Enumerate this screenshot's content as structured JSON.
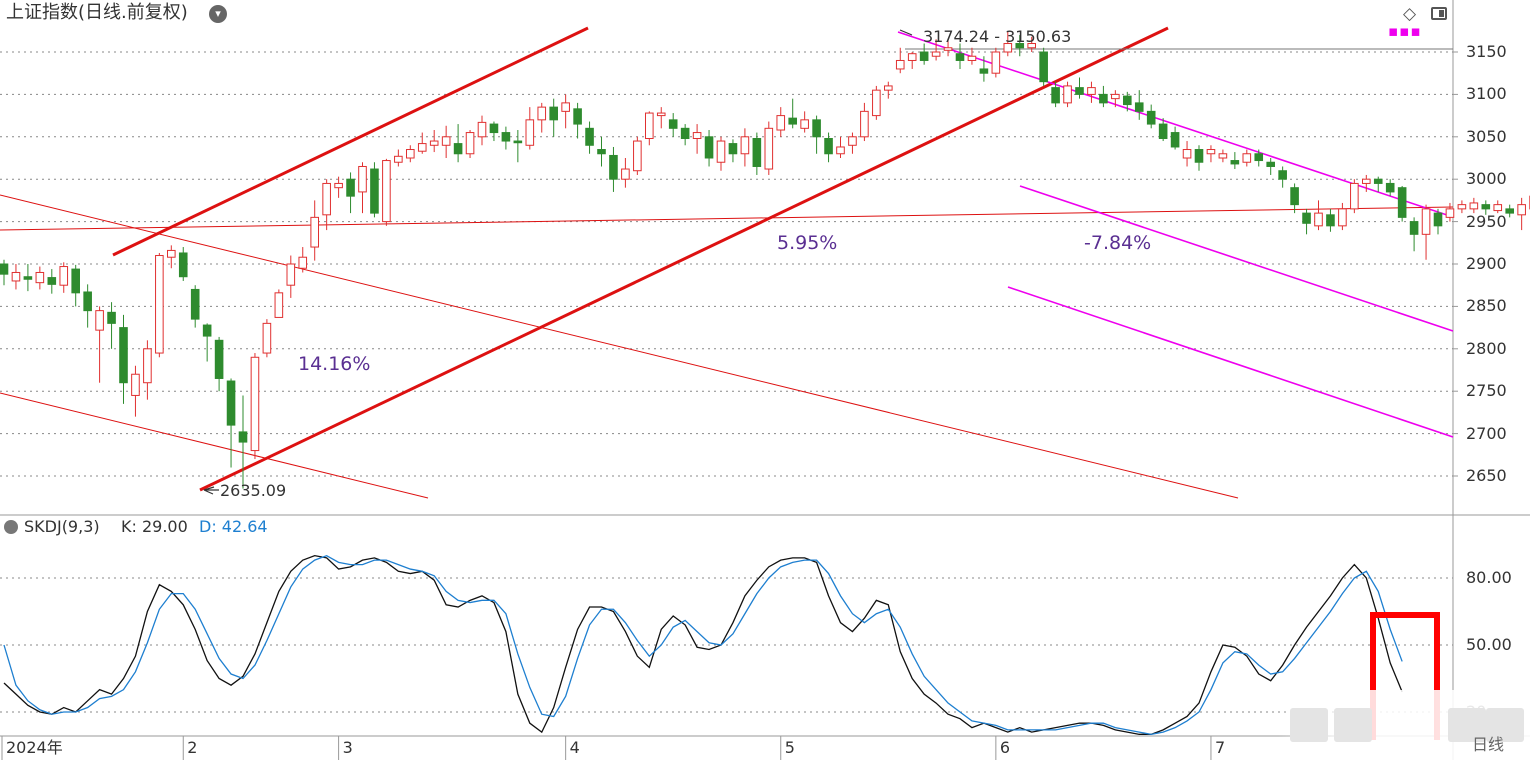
{
  "header": {
    "title": "上证指数(日线.前复权)",
    "icon": "chevron-down-icon"
  },
  "toolbar": {
    "icons": [
      "diamond-icon",
      "panel-toggle-icon",
      "more-dots-icon"
    ],
    "accent_color": "#ee00ee"
  },
  "indicator": {
    "name": "SKDJ(9,3)",
    "k_text": "K: 29.00",
    "d_text": "D: 42.64",
    "k_color": "#111111",
    "d_color": "#1e7fd0"
  },
  "annotations": {
    "pct1": "14.16%",
    "pct2": "5.95%",
    "pct3": "-7.84%",
    "low_label": "2635.09",
    "high_label": "3174.24 - 3150.63",
    "corner_label": "日线"
  },
  "colors": {
    "up": "#e03030",
    "down": "#2e8b2e",
    "trend": "#dd1111",
    "channel": "#ee00ee",
    "highlight_box": "#ff0000"
  },
  "chart_data": [
    {
      "type": "candlestick",
      "title": "上证指数(日线.前复权)",
      "ylim": [
        2620,
        3180
      ],
      "y_ticks": [
        2650,
        2700,
        2750,
        2800,
        2850,
        2900,
        2950,
        3000,
        3050,
        3100,
        3150
      ],
      "x_tick_labels": [
        "2024年",
        "2",
        "3",
        "4",
        "5",
        "6",
        "7"
      ],
      "grid": true,
      "low": 2635.09,
      "high": 3174.24,
      "candles": [
        [
          2900,
          2888,
          2905,
          2875
        ],
        [
          2880,
          2890,
          2900,
          2870
        ],
        [
          2885,
          2882,
          2900,
          2868
        ],
        [
          2878,
          2890,
          2897,
          2870
        ],
        [
          2884,
          2876,
          2894,
          2865
        ],
        [
          2875,
          2897,
          2902,
          2866
        ],
        [
          2894,
          2866,
          2899,
          2850
        ],
        [
          2867,
          2845,
          2876,
          2825
        ],
        [
          2822,
          2845,
          2850,
          2760
        ],
        [
          2843,
          2830,
          2855,
          2800
        ],
        [
          2825,
          2760,
          2840,
          2735
        ],
        [
          2745,
          2770,
          2780,
          2720
        ],
        [
          2760,
          2800,
          2810,
          2740
        ],
        [
          2795,
          2910,
          2913,
          2790
        ],
        [
          2908,
          2916,
          2922,
          2895
        ],
        [
          2913,
          2885,
          2920,
          2880
        ],
        [
          2870,
          2835,
          2875,
          2825
        ],
        [
          2828,
          2815,
          2830,
          2785
        ],
        [
          2810,
          2765,
          2814,
          2750
        ],
        [
          2762,
          2710,
          2765,
          2660
        ],
        [
          2702,
          2690,
          2745,
          2635.09
        ],
        [
          2680,
          2790,
          2795,
          2670
        ],
        [
          2795,
          2830,
          2835,
          2790
        ],
        [
          2837,
          2866,
          2870,
          2837
        ],
        [
          2875,
          2900,
          2910,
          2860
        ],
        [
          2895,
          2908,
          2920,
          2890
        ],
        [
          2920,
          2955,
          2975,
          2904
        ],
        [
          2958,
          2995,
          3000,
          2940
        ],
        [
          2990,
          2995,
          3003,
          2978
        ],
        [
          3000,
          2980,
          3008,
          2960
        ],
        [
          2985,
          3015,
          3020,
          2960
        ],
        [
          3012,
          2960,
          3020,
          2955
        ],
        [
          2950,
          3022,
          3024,
          2945
        ],
        [
          3020,
          3027,
          3035,
          3015
        ],
        [
          3025,
          3035,
          3040,
          3020
        ],
        [
          3033,
          3042,
          3055,
          3030
        ],
        [
          3040,
          3045,
          3058,
          3032
        ],
        [
          3040,
          3050,
          3063,
          3025
        ],
        [
          3042,
          3030,
          3065,
          3020
        ],
        [
          3030,
          3055,
          3058,
          3025
        ],
        [
          3050,
          3067,
          3075,
          3040
        ],
        [
          3065,
          3055,
          3068,
          3045
        ],
        [
          3055,
          3045,
          3062,
          3035
        ],
        [
          3045,
          3043,
          3058,
          3020
        ],
        [
          3040,
          3070,
          3085,
          3035
        ],
        [
          3070,
          3085,
          3090,
          3055
        ],
        [
          3085,
          3070,
          3095,
          3050
        ],
        [
          3080,
          3090,
          3100,
          3060
        ],
        [
          3083,
          3065,
          3090,
          3048
        ],
        [
          3060,
          3040,
          3068,
          3030
        ],
        [
          3035,
          3030,
          3050,
          3015
        ],
        [
          3028,
          3000,
          3038,
          2985
        ],
        [
          3000,
          3012,
          3025,
          2990
        ],
        [
          3010,
          3045,
          3050,
          3005
        ],
        [
          3048,
          3078,
          3080,
          3040
        ],
        [
          3075,
          3078,
          3085,
          3060
        ],
        [
          3070,
          3060,
          3078,
          3050
        ],
        [
          3060,
          3048,
          3065,
          3040
        ],
        [
          3048,
          3055,
          3065,
          3030
        ],
        [
          3050,
          3025,
          3058,
          3015
        ],
        [
          3020,
          3045,
          3050,
          3010
        ],
        [
          3042,
          3030,
          3047,
          3020
        ],
        [
          3030,
          3050,
          3060,
          3015
        ],
        [
          3048,
          3015,
          3055,
          3005
        ],
        [
          3012,
          3060,
          3068,
          3005
        ],
        [
          3058,
          3075,
          3085,
          3050
        ],
        [
          3072,
          3065,
          3095,
          3060
        ],
        [
          3060,
          3070,
          3080,
          3055
        ],
        [
          3070,
          3050,
          3075,
          3030
        ],
        [
          3048,
          3030,
          3055,
          3020
        ],
        [
          3030,
          3038,
          3050,
          3025
        ],
        [
          3040,
          3050,
          3055,
          3030
        ],
        [
          3050,
          3080,
          3090,
          3045
        ],
        [
          3075,
          3105,
          3110,
          3070
        ],
        [
          3105,
          3110,
          3115,
          3095
        ],
        [
          3130,
          3140,
          3155,
          3125
        ],
        [
          3140,
          3148,
          3150,
          3130
        ],
        [
          3150,
          3140,
          3160,
          3135
        ],
        [
          3145,
          3150,
          3165,
          3140
        ],
        [
          3152,
          3155,
          3165,
          3145
        ],
        [
          3148,
          3140,
          3160,
          3130
        ],
        [
          3140,
          3145,
          3155,
          3135
        ],
        [
          3130,
          3125,
          3145,
          3115
        ],
        [
          3125,
          3150,
          3155,
          3120
        ],
        [
          3150,
          3160,
          3174.24,
          3145
        ],
        [
          3160,
          3155,
          3170,
          3145
        ],
        [
          3155,
          3160,
          3168,
          3150
        ],
        [
          3150,
          3115,
          3155,
          3110
        ],
        [
          3108,
          3090,
          3115,
          3085
        ],
        [
          3090,
          3110,
          3115,
          3085
        ],
        [
          3108,
          3100,
          3120,
          3095
        ],
        [
          3100,
          3108,
          3115,
          3090
        ],
        [
          3100,
          3090,
          3110,
          3085
        ],
        [
          3095,
          3100,
          3105,
          3085
        ],
        [
          3098,
          3088,
          3103,
          3080
        ],
        [
          3090,
          3080,
          3105,
          3070
        ],
        [
          3080,
          3065,
          3088,
          3060
        ],
        [
          3065,
          3048,
          3072,
          3045
        ],
        [
          3055,
          3038,
          3062,
          3035
        ],
        [
          3025,
          3035,
          3045,
          3015
        ],
        [
          3035,
          3020,
          3040,
          3010
        ],
        [
          3030,
          3035,
          3040,
          3020
        ],
        [
          3025,
          3030,
          3035,
          3020
        ],
        [
          3022,
          3018,
          3032,
          3012
        ],
        [
          3020,
          3030,
          3035,
          3015
        ],
        [
          3030,
          3022,
          3035,
          3015
        ],
        [
          3020,
          3015,
          3025,
          3005
        ],
        [
          3010,
          3000,
          3015,
          2990
        ],
        [
          2990,
          2970,
          2995,
          2960
        ],
        [
          2960,
          2948,
          2965,
          2935
        ],
        [
          2945,
          2960,
          2975,
          2940
        ],
        [
          2958,
          2945,
          2965,
          2938
        ],
        [
          2945,
          2965,
          2972,
          2940
        ],
        [
          2965,
          2995,
          3000,
          2960
        ],
        [
          2995,
          3000,
          3005,
          2985
        ],
        [
          3000,
          2995,
          3003,
          2985
        ],
        [
          2995,
          2985,
          3000,
          2980
        ],
        [
          2990,
          2955,
          2992,
          2950
        ],
        [
          2950,
          2935,
          2955,
          2915
        ],
        [
          2935,
          2965,
          2970,
          2905
        ],
        [
          2960,
          2945,
          2965,
          2935
        ],
        [
          2955,
          2965,
          2972,
          2950
        ],
        [
          2965,
          2970,
          2975,
          2960
        ],
        [
          2965,
          2972,
          2978,
          2960
        ],
        [
          2970,
          2965,
          2975,
          2958
        ],
        [
          2963,
          2970,
          2975,
          2960
        ],
        [
          2965,
          2960,
          2970,
          2955
        ],
        [
          2958,
          2970,
          2978,
          2940
        ],
        [
          2965,
          2980,
          2985,
          2960
        ],
        [
          2978,
          2975,
          2982,
          2965
        ],
        [
          2960,
          2915,
          2962,
          2912
        ],
        [
          2905,
          2900,
          2918,
          2895
        ],
        [
          2890,
          2888,
          2895,
          2872
        ]
      ]
    },
    {
      "type": "line",
      "title": "SKDJ(9,3)",
      "ylim": [
        0,
        100
      ],
      "y_ticks": [
        20,
        50,
        80
      ],
      "y_tick_labels": [
        "20",
        "50.00",
        "80.00"
      ],
      "series": [
        {
          "name": "K",
          "values": [
            33,
            28,
            23,
            20,
            19,
            22,
            20,
            25,
            30,
            28,
            35,
            45,
            65,
            77,
            74,
            68,
            57,
            43,
            35,
            32,
            36,
            46,
            60,
            74,
            83,
            88,
            90,
            89,
            84,
            85,
            88,
            89,
            87,
            83,
            82,
            83,
            79,
            68,
            67,
            70,
            72,
            69,
            56,
            28,
            15,
            11,
            22,
            40,
            57,
            67,
            67,
            65,
            56,
            45,
            40,
            57,
            63,
            59,
            49,
            48,
            50,
            60,
            72,
            79,
            85,
            88,
            89,
            89,
            87,
            72,
            60,
            56,
            62,
            70,
            68,
            47,
            35,
            28,
            24,
            19,
            17,
            13,
            15,
            13,
            11,
            13,
            11,
            12,
            13,
            14,
            15,
            15,
            14,
            12,
            11,
            10,
            10,
            12,
            15,
            18,
            24,
            38,
            50,
            49,
            45,
            37,
            34,
            41,
            50,
            58,
            65,
            72,
            80,
            86,
            80,
            62,
            42,
            29
          ]
        },
        {
          "name": "D",
          "values": [
            50,
            32,
            25,
            21,
            19,
            20,
            20,
            22,
            26,
            27,
            30,
            38,
            51,
            66,
            73,
            73,
            66,
            55,
            44,
            37,
            35,
            41,
            52,
            64,
            76,
            84,
            88,
            90,
            87,
            86,
            86,
            88,
            88,
            86,
            84,
            83,
            81,
            74,
            70,
            69,
            70,
            70,
            64,
            46,
            31,
            19,
            18,
            27,
            44,
            59,
            66,
            66,
            60,
            52,
            45,
            50,
            58,
            61,
            56,
            51,
            50,
            55,
            64,
            73,
            80,
            85,
            87,
            88,
            88,
            82,
            72,
            64,
            60,
            64,
            66,
            58,
            46,
            36,
            30,
            24,
            20,
            16,
            15,
            14,
            12,
            12,
            12,
            12,
            12,
            13,
            14,
            15,
            15,
            13,
            12,
            11,
            10,
            11,
            13,
            16,
            20,
            30,
            42,
            47,
            46,
            41,
            37,
            38,
            44,
            51,
            58,
            65,
            73,
            80,
            83,
            74,
            57,
            42.64
          ]
        }
      ]
    }
  ]
}
